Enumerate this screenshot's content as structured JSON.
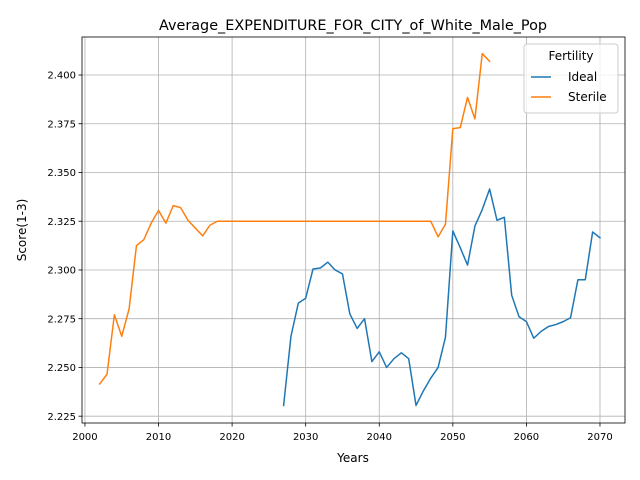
{
  "chart_data": {
    "type": "line",
    "title": "Average_EXPENDITURE_FOR_CITY_of_White_Male_Pop",
    "xlabel": "Years",
    "ylabel": "Score(1-3)",
    "xlim": [
      1999.6,
      2073.4
    ],
    "ylim": [
      2.2215,
      2.4195
    ],
    "xticks": [
      2000,
      2010,
      2020,
      2030,
      2040,
      2050,
      2060,
      2070
    ],
    "xtick_labels": [
      "2000",
      "2010",
      "2020",
      "2030",
      "2040",
      "2050",
      "2060",
      "2070"
    ],
    "yticks": [
      2.225,
      2.25,
      2.275,
      2.3,
      2.325,
      2.35,
      2.375,
      2.4
    ],
    "ytick_labels": [
      "2.225",
      "2.250",
      "2.275",
      "2.300",
      "2.325",
      "2.350",
      "2.375",
      "2.400"
    ],
    "grid": true,
    "legend": {
      "title": "Fertility",
      "position": "top-right"
    },
    "series": [
      {
        "name": "Ideal",
        "color": "#1f77b4",
        "points": [
          [
            2027,
            2.2305
          ],
          [
            2028,
            2.266
          ],
          [
            2029,
            2.283
          ],
          [
            2030,
            2.2855
          ],
          [
            2031,
            2.3005
          ],
          [
            2032,
            2.301
          ],
          [
            2033,
            2.304
          ],
          [
            2034,
            2.3
          ],
          [
            2035,
            2.298
          ],
          [
            2036,
            2.2775
          ],
          [
            2037,
            2.27
          ],
          [
            2038,
            2.275
          ],
          [
            2039,
            2.253
          ],
          [
            2040,
            2.258
          ],
          [
            2041,
            2.25
          ],
          [
            2042,
            2.2545
          ],
          [
            2043,
            2.2575
          ],
          [
            2044,
            2.2545
          ],
          [
            2045,
            2.2305
          ],
          [
            2046,
            2.238
          ],
          [
            2047,
            2.2445
          ],
          [
            2048,
            2.25
          ],
          [
            2049,
            2.2655
          ],
          [
            2050,
            2.32
          ],
          [
            2051,
            2.3115
          ],
          [
            2052,
            2.3025
          ],
          [
            2053,
            2.3225
          ],
          [
            2054,
            2.331
          ],
          [
            2055,
            2.3415
          ],
          [
            2056,
            2.3255
          ],
          [
            2057,
            2.327
          ],
          [
            2058,
            2.287
          ],
          [
            2059,
            2.276
          ],
          [
            2060,
            2.2735
          ],
          [
            2061,
            2.265
          ],
          [
            2062,
            2.2685
          ],
          [
            2063,
            2.271
          ],
          [
            2064,
            2.272
          ],
          [
            2065,
            2.2735
          ],
          [
            2066,
            2.2755
          ],
          [
            2067,
            2.295
          ],
          [
            2068,
            2.295
          ],
          [
            2069,
            2.3195
          ],
          [
            2070,
            2.3165
          ]
        ]
      },
      {
        "name": "Sterile",
        "color": "#ff7f0e",
        "points": [
          [
            2002,
            2.2415
          ],
          [
            2003,
            2.2465
          ],
          [
            2004,
            2.277
          ],
          [
            2005,
            2.266
          ],
          [
            2006,
            2.28
          ],
          [
            2007,
            2.3125
          ],
          [
            2008,
            2.3155
          ],
          [
            2009,
            2.324
          ],
          [
            2010,
            2.3305
          ],
          [
            2011,
            2.324
          ],
          [
            2012,
            2.333
          ],
          [
            2013,
            2.332
          ],
          [
            2014,
            2.3255
          ],
          [
            2015,
            2.3215
          ],
          [
            2016,
            2.3175
          ],
          [
            2017,
            2.323
          ],
          [
            2018,
            2.325
          ],
          [
            2019,
            2.325
          ],
          [
            2020,
            2.325
          ],
          [
            2025,
            2.325
          ],
          [
            2030,
            2.325
          ],
          [
            2035,
            2.325
          ],
          [
            2040,
            2.325
          ],
          [
            2045,
            2.325
          ],
          [
            2047,
            2.325
          ],
          [
            2048,
            2.317
          ],
          [
            2049,
            2.3235
          ],
          [
            2050,
            2.3725
          ],
          [
            2051,
            2.373
          ],
          [
            2052,
            2.3885
          ],
          [
            2053,
            2.3775
          ],
          [
            2054,
            2.411
          ],
          [
            2055,
            2.407
          ]
        ]
      }
    ]
  }
}
